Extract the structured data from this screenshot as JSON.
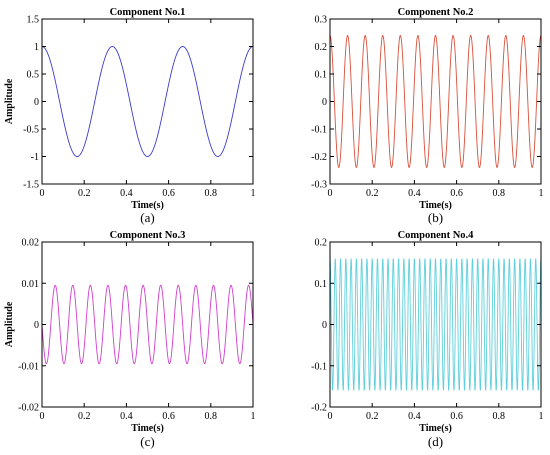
{
  "chart_data": [
    {
      "type": "line",
      "title": "Component No.1",
      "caption": "(a)",
      "xlabel": "Time(s)",
      "ylabel": "Amplitude",
      "xlim": [
        0,
        1
      ],
      "ylim": [
        -1.5,
        1.5
      ],
      "xticks": [
        0,
        0.2,
        0.4,
        0.6,
        0.8,
        1
      ],
      "xtick_labels": [
        "0",
        "0.2",
        "0.4",
        "0.6",
        "0.8",
        "1"
      ],
      "yticks": [
        -1.5,
        -1,
        -0.5,
        0,
        0.5,
        1,
        1.5
      ],
      "ytick_labels": [
        "-1.5",
        "-1",
        "-0.5",
        "0",
        "0.5",
        "1",
        "1.5"
      ],
      "series": [
        {
          "waveform": "cosine",
          "amplitude": 1.0,
          "frequency_hz": 3,
          "phase_rad": 0.0,
          "color": "#3b3bd1"
        }
      ],
      "grid": false,
      "legend": "none"
    },
    {
      "type": "line",
      "title": "Component No.2",
      "caption": "(b)",
      "xlabel": "Time(s)",
      "ylabel": "",
      "xlim": [
        0,
        1
      ],
      "ylim": [
        -0.3,
        0.3
      ],
      "xticks": [
        0,
        0.2,
        0.4,
        0.6,
        0.8,
        1
      ],
      "xtick_labels": [
        "0",
        "0.2",
        "0.4",
        "0.6",
        "0.8",
        "1"
      ],
      "yticks": [
        -0.3,
        -0.2,
        -0.1,
        0,
        0.1,
        0.2,
        0.3
      ],
      "ytick_labels": [
        "-0.3",
        "-0.2",
        "-0.1",
        "0",
        "0.1",
        "0.2",
        "0.3"
      ],
      "series": [
        {
          "waveform": "cosine",
          "amplitude": 0.24,
          "frequency_hz": 12,
          "phase_rad": 0.0,
          "color": "#d9503a"
        }
      ],
      "grid": false,
      "legend": "none"
    },
    {
      "type": "line",
      "title": "Component No.3",
      "caption": "(c)",
      "xlabel": "Time(s)",
      "ylabel": "Amplitude",
      "xlim": [
        0,
        1
      ],
      "ylim": [
        -0.02,
        0.02
      ],
      "xticks": [
        0,
        0.2,
        0.4,
        0.6,
        0.8,
        1
      ],
      "xtick_labels": [
        "0",
        "0.2",
        "0.4",
        "0.6",
        "0.8",
        "1"
      ],
      "yticks": [
        -0.02,
        -0.01,
        0,
        0.01,
        0.02
      ],
      "ytick_labels": [
        "-0.02",
        "-0.01",
        "0",
        "0.01",
        "0.02"
      ],
      "series": [
        {
          "waveform": "sine",
          "amplitude": 0.0095,
          "frequency_hz": 12,
          "phase_rad": 3.14159,
          "color": "#d13fd1"
        }
      ],
      "grid": false,
      "legend": "none"
    },
    {
      "type": "line",
      "title": "Component No.4",
      "caption": "(d)",
      "xlabel": "Time(s)",
      "ylabel": "",
      "xlim": [
        0,
        1
      ],
      "ylim": [
        -0.2,
        0.2
      ],
      "xticks": [
        0,
        0.2,
        0.4,
        0.6,
        0.8,
        1
      ],
      "xtick_labels": [
        "0",
        "0.2",
        "0.4",
        "0.6",
        "0.8",
        "1"
      ],
      "yticks": [
        -0.2,
        -0.1,
        0,
        0.1,
        0.2
      ],
      "ytick_labels": [
        "-0.2",
        "-0.1",
        "0",
        "0.1",
        "0.2"
      ],
      "series": [
        {
          "waveform": "cosine",
          "amplitude": 0.16,
          "frequency_hz": 40,
          "phase_rad": 0.0,
          "color": "#5fd0dc"
        }
      ],
      "grid": false,
      "legend": "none"
    }
  ]
}
